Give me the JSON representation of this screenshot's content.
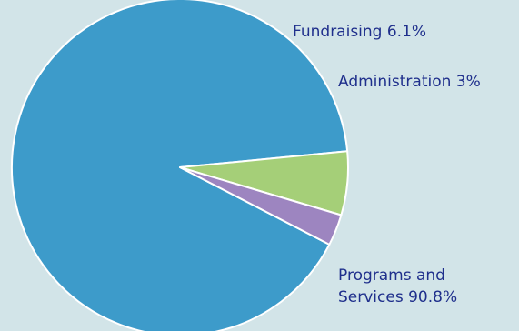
{
  "chart_data": {
    "type": "pie",
    "slices": [
      {
        "label": "Programs and Services",
        "value": 90.8,
        "display_lines": [
          "Programs and",
          "Services 90.8%"
        ],
        "color": "#3d9bca"
      },
      {
        "label": "Fundraising",
        "value": 6.1,
        "display_lines": [
          "Fundraising 6.1%"
        ],
        "color": "#a5cf78"
      },
      {
        "label": "Administration",
        "value": 3,
        "display_lines": [
          "Administration 3%"
        ],
        "color": "#9d85c0"
      }
    ],
    "label_color": "#1f2f8c",
    "background": "#d2e4e8",
    "legend": "none"
  }
}
